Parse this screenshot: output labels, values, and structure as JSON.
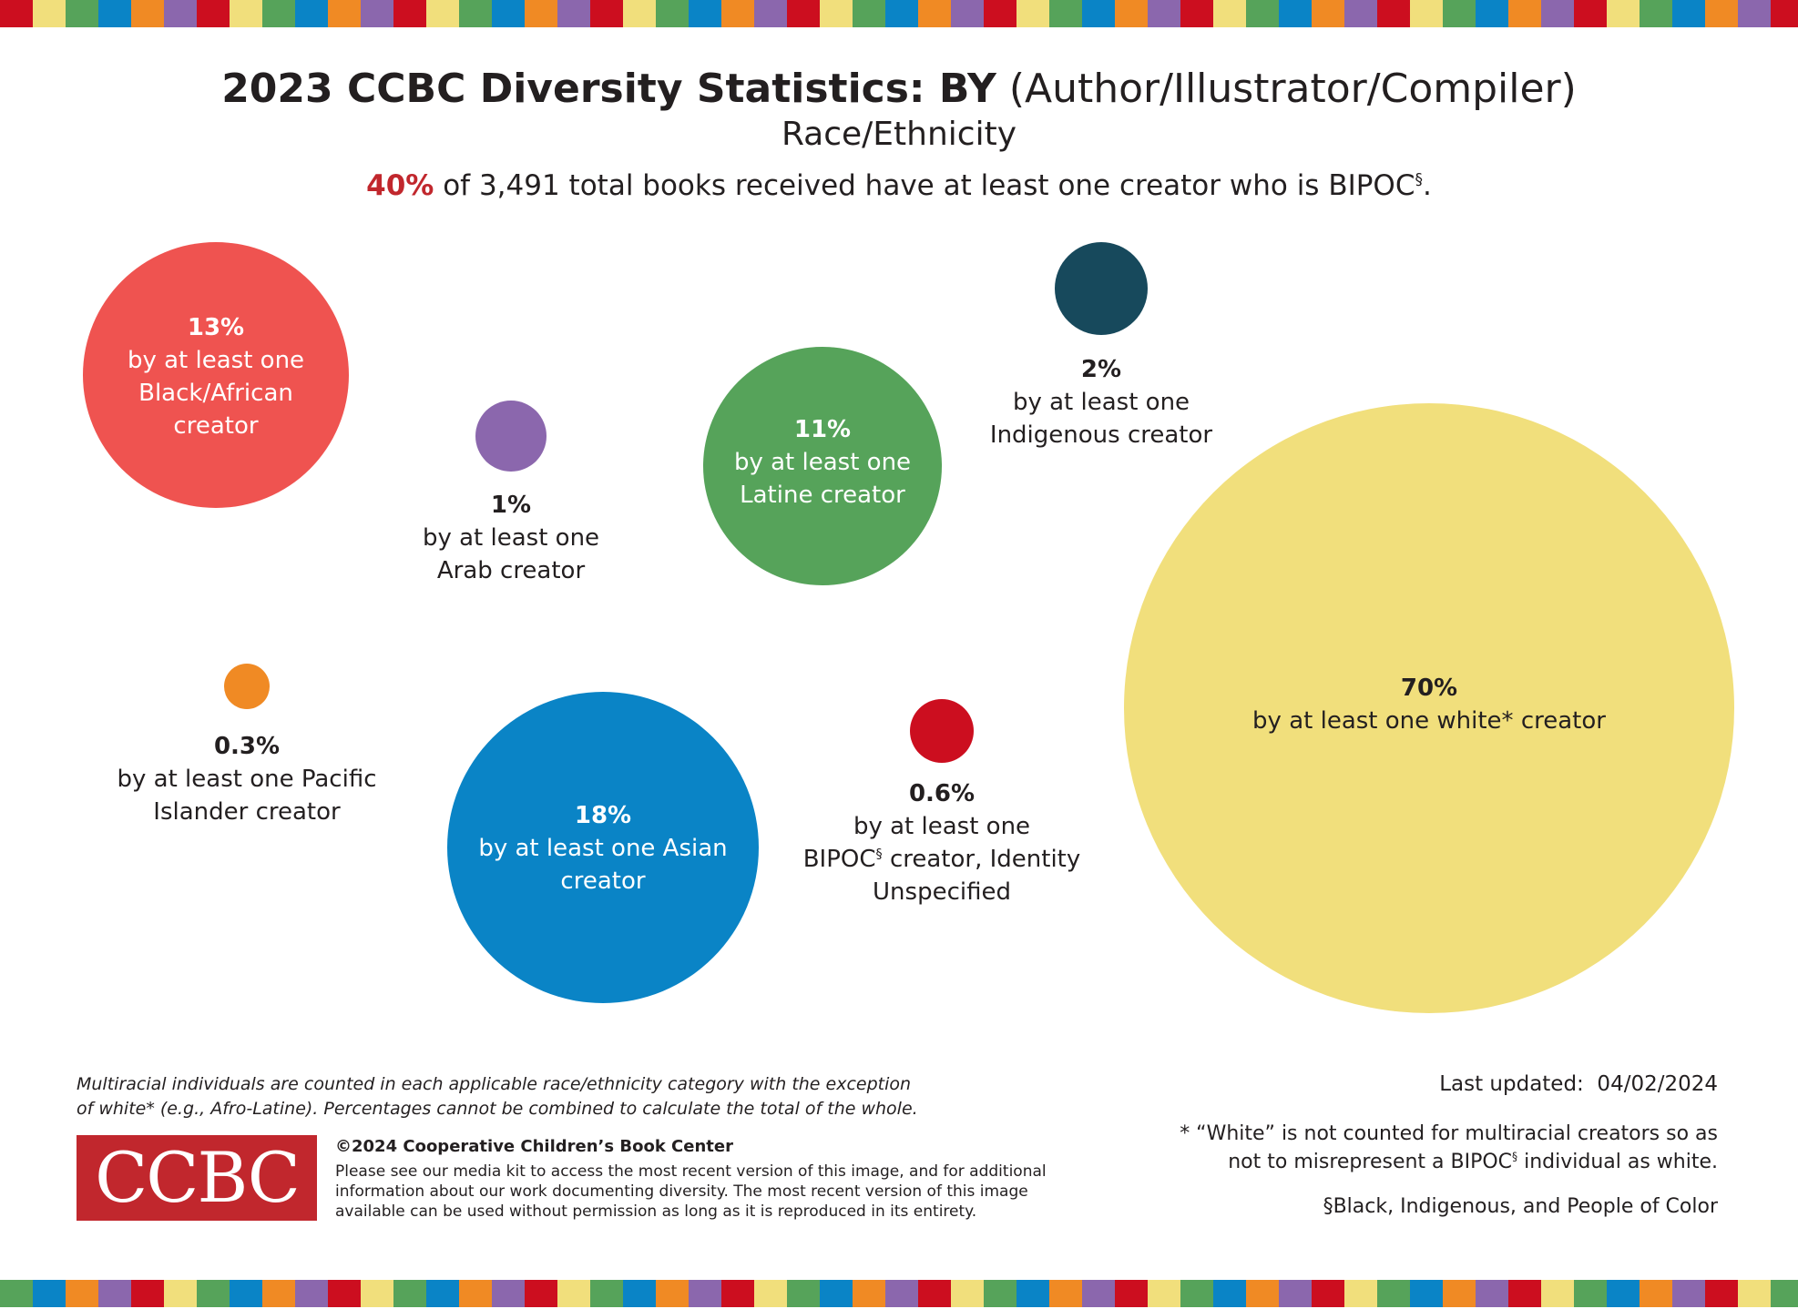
{
  "header": {
    "title_bold": "2023 CCBC Diversity Statistics: BY",
    "title_rest": "(Author/Illustrator/Compiler)",
    "subtitle": "Race/Ethnicity",
    "headline_pct": "40%",
    "headline_text": "of 3,491 total books received have at least one creator who is BIPOC",
    "headline_mark": "§",
    "headline_end": "."
  },
  "chart_data": {
    "type": "bubble",
    "title": "2023 CCBC Diversity Statistics: BY (Author/Illustrator/Compiler)",
    "subtitle": "Race/Ethnicity",
    "total_books": 3491,
    "bipoc_share_percent": 40,
    "bubbles": [
      {
        "value": 13,
        "pct_label": "13%",
        "line1": "by at least one",
        "line2": "Black/African",
        "line3": "creator",
        "color": "#ef5350"
      },
      {
        "value": 1,
        "pct_label": "1%",
        "line1": "by at least one",
        "line2": "Arab creator",
        "color": "#8b67ad"
      },
      {
        "value": 11,
        "pct_label": "11%",
        "line1": "by at least one",
        "line2": "Latine creator",
        "color": "#56a35a"
      },
      {
        "value": 2,
        "pct_label": "2%",
        "line1": "by at least one",
        "line2": "Indigenous creator",
        "color": "#17495c"
      },
      {
        "value": 70,
        "pct_label": "70%",
        "line1": "by at least one white* creator",
        "color": "#f1df7c"
      },
      {
        "value": 0.3,
        "pct_label": "0.3%",
        "line1": "by at least one Pacific",
        "line2": "Islander creator",
        "color": "#f08a24"
      },
      {
        "value": 18,
        "pct_label": "18%",
        "line1": "by at least one Asian",
        "line2": "creator",
        "color": "#0a84c6"
      },
      {
        "value": 0.6,
        "pct_label": "0.6%",
        "line1": "by at least one",
        "line2": "BIPOC",
        "line2_mark": "§",
        "line2_end": " creator, Identity",
        "line3": "Unspecified",
        "color": "#cc0e1f"
      }
    ]
  },
  "stripe_colors": [
    "#cc0e1f",
    "#f1df7c",
    "#56a35a",
    "#0a84c6",
    "#f08a24",
    "#8b67ad"
  ],
  "footer": {
    "note_line1": "Multiracial individuals are counted in each applicable race/ethnicity category with the exception",
    "note_line2": "of white* (e.g., Afro-Latine). Percentages cannot be combined to calculate the total of the whole.",
    "logo_text": "CCBC",
    "copyright": "©2024 Cooperative Children’s Book Center",
    "copy_text": "Please see our media kit to access the most recent version of this image, and for additional information about our work documenting diversity. The most recent version of this image available can be used without permission as long as it is reproduced in its entirety.",
    "last_updated": "Last updated:  04/02/2024",
    "white_note_1": "* “White” is not counted for multiracial creators so as",
    "white_note_2a": "not to misrepresent a BIPOC",
    "white_note_mark": "§",
    "white_note_2b": " individual as white.",
    "bipoc_def": "§Black, Indigenous, and People of Color"
  }
}
